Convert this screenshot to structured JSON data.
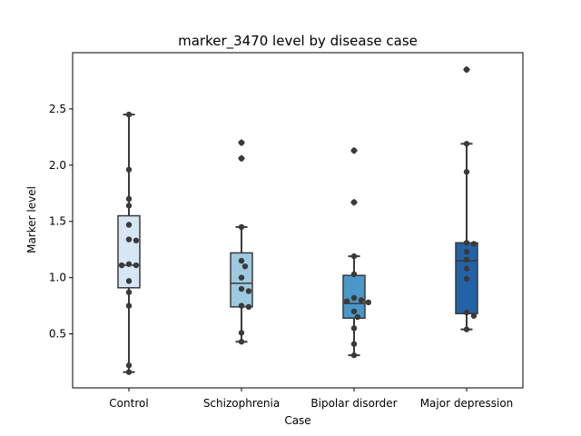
{
  "chart_data": {
    "type": "box",
    "title": "marker_3470 level by disease case",
    "xlabel": "Case",
    "ylabel": "Marker level",
    "categories": [
      "Control",
      "Schizophrenia",
      "Bipolar disorder",
      "Major depression"
    ],
    "ylim": [
      0.02,
      3.0
    ],
    "yticks": [
      0.5,
      1.0,
      1.5,
      2.0,
      2.5
    ],
    "ytick_labels": [
      "0.5",
      "1.0",
      "1.5",
      "2.0",
      "2.5"
    ],
    "grid": false,
    "colors": [
      "#d6e6f4",
      "#9ecae1",
      "#4a98c9",
      "#2163a6"
    ],
    "point_color": "#3a3a3a",
    "boxes": [
      {
        "category": "Control",
        "whislo": 0.16,
        "q1": 0.91,
        "median": 1.11,
        "q3": 1.55,
        "whishi": 2.45,
        "fliers": []
      },
      {
        "category": "Schizophrenia",
        "whislo": 0.43,
        "q1": 0.74,
        "median": 0.95,
        "q3": 1.22,
        "whishi": 1.45,
        "fliers": [
          2.2,
          2.06
        ]
      },
      {
        "category": "Bipolar disorder",
        "whislo": 0.31,
        "q1": 0.64,
        "median": 0.77,
        "q3": 1.02,
        "whishi": 1.19,
        "fliers": [
          2.13,
          1.67
        ]
      },
      {
        "category": "Major depression",
        "whislo": 0.54,
        "q1": 0.68,
        "median": 1.15,
        "q3": 1.31,
        "whishi": 2.19,
        "fliers": [
          2.85
        ]
      }
    ],
    "points": [
      [
        2.45,
        1.96,
        1.7,
        1.64,
        1.47,
        1.34,
        1.33,
        1.12,
        1.11,
        1.11,
        0.97,
        0.87,
        0.75,
        0.22,
        0.16
      ],
      [
        2.2,
        2.06,
        1.45,
        1.15,
        1.1,
        1.0,
        0.9,
        0.88,
        0.75,
        0.74,
        0.51,
        0.43
      ],
      [
        2.13,
        1.67,
        1.19,
        1.03,
        0.82,
        0.8,
        0.79,
        0.78,
        0.7,
        0.65,
        0.55,
        0.41,
        0.31
      ],
      [
        2.85,
        2.19,
        1.94,
        1.31,
        1.3,
        1.23,
        1.16,
        1.08,
        0.99,
        0.69,
        0.66,
        0.54
      ]
    ]
  }
}
